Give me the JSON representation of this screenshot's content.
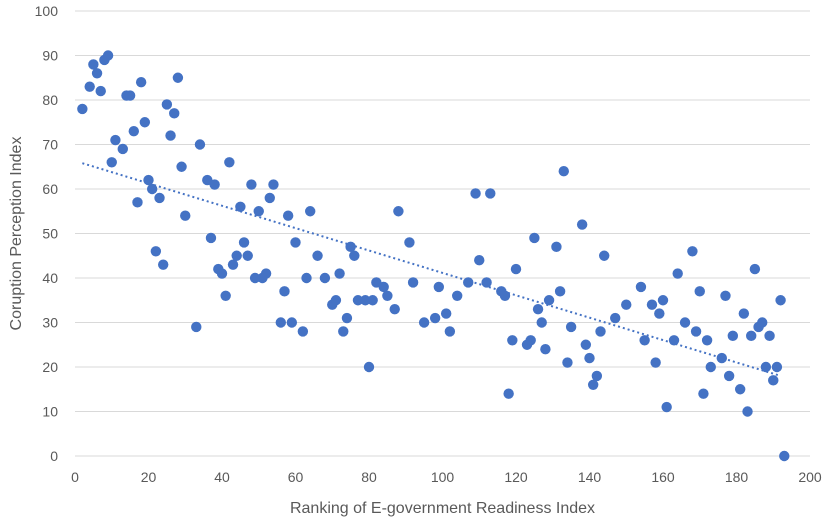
{
  "chart_data": {
    "type": "scatter",
    "title": "",
    "xlabel": "Ranking of E-government Readiness Index",
    "ylabel": "Coruption Perception Index",
    "xlim": [
      0,
      200
    ],
    "ylim": [
      0,
      100
    ],
    "x_ticks": [
      0,
      20,
      40,
      60,
      80,
      100,
      120,
      140,
      160,
      180,
      200
    ],
    "y_ticks": [
      0,
      10,
      20,
      30,
      40,
      50,
      60,
      70,
      80,
      90,
      100
    ],
    "grid": "horizontal",
    "colors": {
      "marker": "#4472c4",
      "trendline": "#4472c4",
      "grid": "#d9d9d9",
      "text": "#595959"
    },
    "trendline": {
      "type": "linear",
      "style": "dotted",
      "x": [
        2,
        192
      ],
      "y": [
        65.8,
        18.0
      ]
    },
    "series": [
      {
        "points": [
          [
            2,
            78
          ],
          [
            4,
            83
          ],
          [
            5,
            88
          ],
          [
            6,
            86
          ],
          [
            7,
            82
          ],
          [
            8,
            89
          ],
          [
            9,
            90
          ],
          [
            10,
            66
          ],
          [
            11,
            71
          ],
          [
            13,
            69
          ],
          [
            14,
            81
          ],
          [
            15,
            81
          ],
          [
            16,
            73
          ],
          [
            17,
            57
          ],
          [
            18,
            84
          ],
          [
            19,
            75
          ],
          [
            20,
            62
          ],
          [
            21,
            60
          ],
          [
            22,
            46
          ],
          [
            23,
            58
          ],
          [
            24,
            43
          ],
          [
            25,
            79
          ],
          [
            26,
            72
          ],
          [
            27,
            77
          ],
          [
            28,
            85
          ],
          [
            29,
            65
          ],
          [
            30,
            54
          ],
          [
            33,
            29
          ],
          [
            34,
            70
          ],
          [
            36,
            62
          ],
          [
            37,
            49
          ],
          [
            38,
            61
          ],
          [
            39,
            42
          ],
          [
            40,
            41
          ],
          [
            41,
            36
          ],
          [
            42,
            66
          ],
          [
            43,
            43
          ],
          [
            44,
            45
          ],
          [
            45,
            56
          ],
          [
            46,
            48
          ],
          [
            47,
            45
          ],
          [
            48,
            61
          ],
          [
            49,
            40
          ],
          [
            50,
            55
          ],
          [
            51,
            40
          ],
          [
            52,
            41
          ],
          [
            53,
            58
          ],
          [
            54,
            61
          ],
          [
            56,
            30
          ],
          [
            57,
            37
          ],
          [
            58,
            54
          ],
          [
            59,
            30
          ],
          [
            60,
            48
          ],
          [
            62,
            28
          ],
          [
            63,
            40
          ],
          [
            64,
            55
          ],
          [
            66,
            45
          ],
          [
            68,
            40
          ],
          [
            70,
            34
          ],
          [
            71,
            35
          ],
          [
            72,
            41
          ],
          [
            73,
            28
          ],
          [
            74,
            31
          ],
          [
            75,
            47
          ],
          [
            76,
            45
          ],
          [
            77,
            35
          ],
          [
            79,
            35
          ],
          [
            80,
            20
          ],
          [
            81,
            35
          ],
          [
            82,
            39
          ],
          [
            84,
            38
          ],
          [
            85,
            36
          ],
          [
            87,
            33
          ],
          [
            88,
            55
          ],
          [
            91,
            48
          ],
          [
            92,
            39
          ],
          [
            95,
            30
          ],
          [
            98,
            31
          ],
          [
            99,
            38
          ],
          [
            101,
            32
          ],
          [
            102,
            28
          ],
          [
            104,
            36
          ],
          [
            107,
            39
          ],
          [
            109,
            59
          ],
          [
            110,
            44
          ],
          [
            112,
            39
          ],
          [
            113,
            59
          ],
          [
            116,
            37
          ],
          [
            117,
            36
          ],
          [
            118,
            14
          ],
          [
            119,
            26
          ],
          [
            120,
            42
          ],
          [
            123,
            25
          ],
          [
            124,
            26
          ],
          [
            125,
            49
          ],
          [
            126,
            33
          ],
          [
            127,
            30
          ],
          [
            128,
            24
          ],
          [
            129,
            35
          ],
          [
            131,
            47
          ],
          [
            132,
            37
          ],
          [
            133,
            64
          ],
          [
            134,
            21
          ],
          [
            135,
            29
          ],
          [
            138,
            52
          ],
          [
            139,
            25
          ],
          [
            140,
            22
          ],
          [
            141,
            16
          ],
          [
            142,
            18
          ],
          [
            143,
            28
          ],
          [
            144,
            45
          ],
          [
            147,
            31
          ],
          [
            150,
            34
          ],
          [
            154,
            38
          ],
          [
            155,
            26
          ],
          [
            157,
            34
          ],
          [
            158,
            21
          ],
          [
            159,
            32
          ],
          [
            160,
            35
          ],
          [
            161,
            11
          ],
          [
            163,
            26
          ],
          [
            164,
            41
          ],
          [
            166,
            30
          ],
          [
            168,
            46
          ],
          [
            169,
            28
          ],
          [
            170,
            37
          ],
          [
            171,
            14
          ],
          [
            172,
            26
          ],
          [
            173,
            20
          ],
          [
            176,
            22
          ],
          [
            177,
            36
          ],
          [
            178,
            18
          ],
          [
            179,
            27
          ],
          [
            181,
            15
          ],
          [
            182,
            32
          ],
          [
            183,
            10
          ],
          [
            184,
            27
          ],
          [
            185,
            42
          ],
          [
            186,
            29
          ],
          [
            187,
            30
          ],
          [
            188,
            20
          ],
          [
            189,
            27
          ],
          [
            190,
            17
          ],
          [
            191,
            20
          ],
          [
            192,
            35
          ],
          [
            193,
            0
          ]
        ]
      }
    ]
  }
}
